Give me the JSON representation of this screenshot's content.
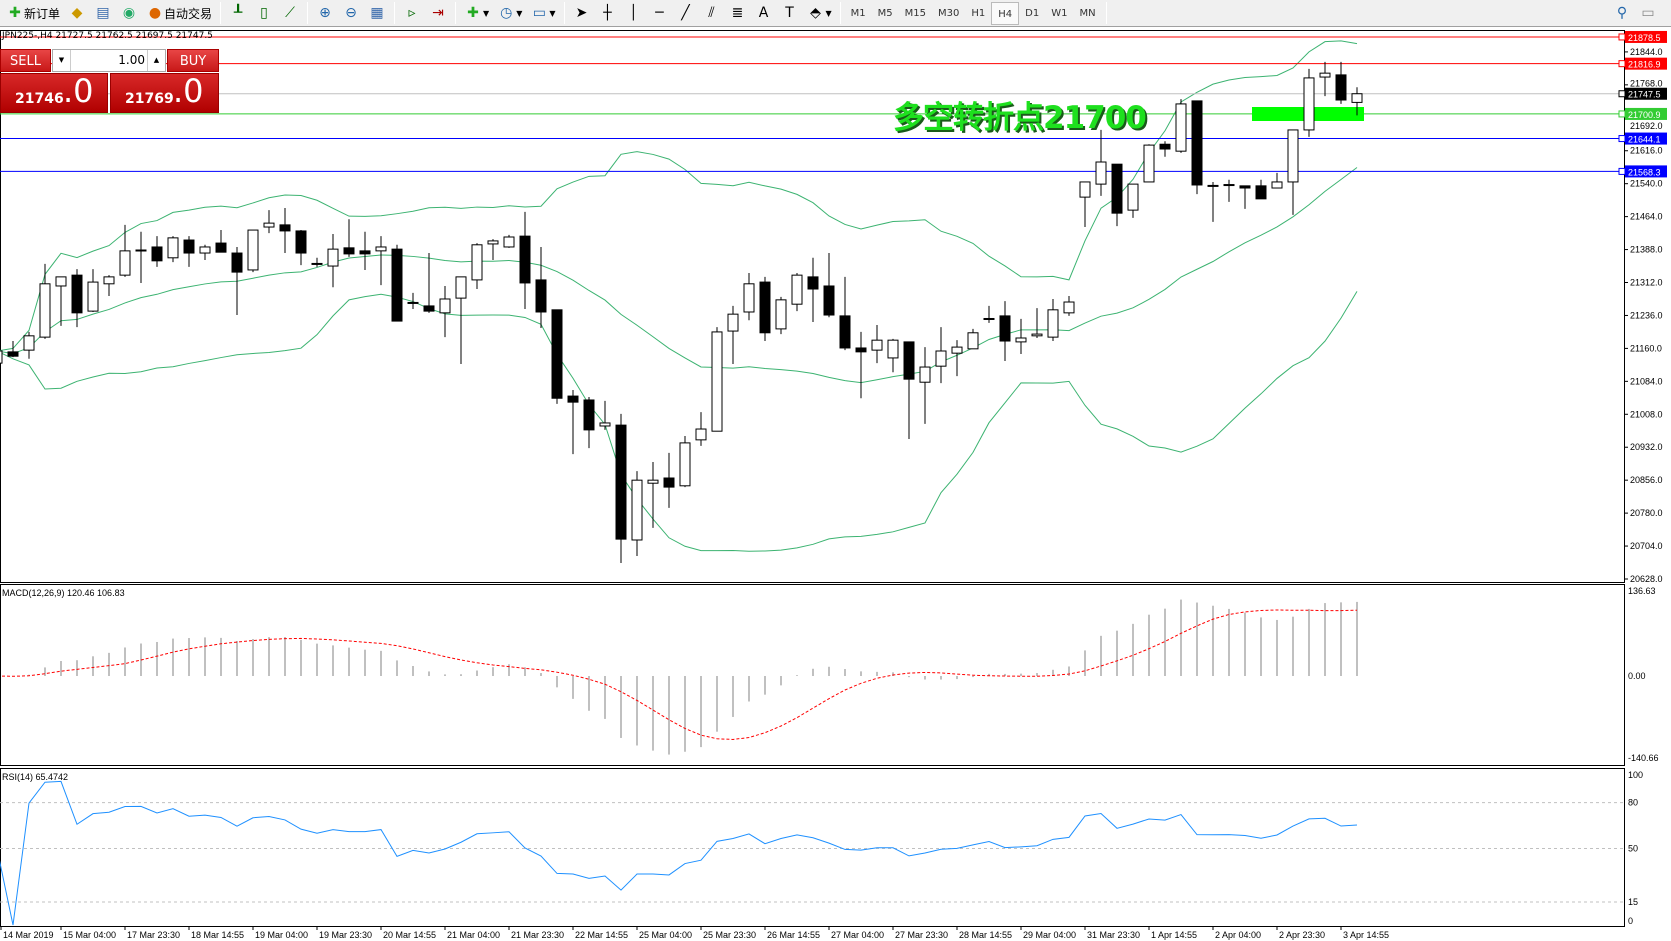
{
  "toolbar": {
    "new_order": "新订单",
    "auto_trading": "自动交易",
    "periods": [
      "M1",
      "M5",
      "M15",
      "M30",
      "H1",
      "H4",
      "D1",
      "W1",
      "MN"
    ],
    "active_period": "H4",
    "icons": [
      "new-order-icon",
      "market-watch-icon",
      "history-icon",
      "signal-icon",
      "auto-trading-icon",
      "bar-chart-icon",
      "candlestick-icon",
      "line-chart-icon",
      "zoom-in-icon",
      "zoom-out-icon",
      "tile-windows-icon",
      "chart-shift-icon",
      "autoscroll-icon",
      "indicators-icon",
      "periods-icon",
      "templates-icon",
      "cursor-icon",
      "crosshair-icon",
      "vertical-line-icon",
      "horizontal-line-icon",
      "trendline-icon",
      "fibonacci-icon",
      "channel-icon",
      "text-icon",
      "text-label-icon",
      "arrows-icon",
      "search-icon",
      "chat-icon"
    ]
  },
  "chart": {
    "symbol_info": "JPN225-,H4  21727.5 21762.5 21697.5 21747.5",
    "annotation": "多空转折点21700",
    "annotation_color": "#1ee01e",
    "trade_panel": {
      "sell_label": "SELL",
      "buy_label": "BUY",
      "lot": "1.00",
      "sell_main": "21746",
      "sell_frac": ".0",
      "buy_main": "21769",
      "buy_frac": ".0"
    },
    "price_axis": [
      "21844.0",
      "21768.0",
      "21692.0",
      "21616.0",
      "21540.0",
      "21464.0",
      "21388.0",
      "21312.0",
      "21236.0",
      "21160.0",
      "21084.0",
      "21008.0",
      "20932.0",
      "20856.0",
      "20780.0",
      "20704.0",
      "20628.0"
    ],
    "levels": [
      {
        "label": "21878.5",
        "value": 21878.5,
        "color": "#ff0000"
      },
      {
        "label": "21816.9",
        "value": 21816.9,
        "color": "#ff0000"
      },
      {
        "label": "21747.5",
        "value": 21747.5,
        "color": "#000000",
        "line": "#c0c0c0"
      },
      {
        "label": "21700.9",
        "value": 21700.9,
        "color": "#33cc33"
      },
      {
        "label": "21644.1",
        "value": 21644.1,
        "color": "#0000ff"
      },
      {
        "label": "21568.3",
        "value": 21568.3,
        "color": "#0000ff"
      }
    ],
    "zone_color": "#00ff00",
    "band_color": "#3cb371",
    "candles": [
      [
        21126,
        21160,
        21120,
        21154
      ],
      [
        21152,
        21177,
        21140,
        21142
      ],
      [
        21156,
        21198,
        21136,
        21189
      ],
      [
        21186,
        21355,
        21182,
        21309
      ],
      [
        21304,
        21325,
        21212,
        21325
      ],
      [
        21329,
        21343,
        21209,
        21242
      ],
      [
        21246,
        21343,
        21244,
        21313
      ],
      [
        21309,
        21329,
        21281,
        21325
      ],
      [
        21329,
        21445,
        21325,
        21385
      ],
      [
        21387,
        21429,
        21311,
        21387
      ],
      [
        21394,
        21419,
        21348,
        21362
      ],
      [
        21369,
        21419,
        21359,
        21415
      ],
      [
        21410,
        21419,
        21348,
        21380
      ],
      [
        21380,
        21399,
        21364,
        21394
      ],
      [
        21403,
        21433,
        21382,
        21382
      ],
      [
        21380,
        21394,
        21237,
        21336
      ],
      [
        21341,
        21433,
        21336,
        21433
      ],
      [
        21440,
        21479,
        21426,
        21449
      ],
      [
        21445,
        21484,
        21380,
        21431
      ],
      [
        21431,
        21433,
        21352,
        21380
      ],
      [
        21355,
        21369,
        21348,
        21356
      ],
      [
        21350,
        21424,
        21301,
        21389
      ],
      [
        21392,
        21458,
        21371,
        21378
      ],
      [
        21385,
        21429,
        21341,
        21378
      ],
      [
        21385,
        21419,
        21306,
        21394
      ],
      [
        21389,
        21399,
        21223,
        21223
      ],
      [
        21265,
        21288,
        21251,
        21266
      ],
      [
        21258,
        21380,
        21242,
        21246
      ],
      [
        21242,
        21304,
        21186,
        21274
      ],
      [
        21276,
        21325,
        21124,
        21325
      ],
      [
        21318,
        21403,
        21297,
        21399
      ],
      [
        21401,
        21412,
        21364,
        21408
      ],
      [
        21394,
        21422,
        21392,
        21417
      ],
      [
        21419,
        21475,
        21251,
        21311
      ],
      [
        21318,
        21394,
        21207,
        21244
      ],
      [
        21249,
        21249,
        21032,
        21045
      ],
      [
        21050,
        21064,
        20916,
        21036
      ],
      [
        21041,
        21048,
        20930,
        20972
      ],
      [
        20981,
        21039,
        20972,
        20988
      ],
      [
        20983,
        21009,
        20665,
        20720
      ],
      [
        20718,
        20877,
        20681,
        20856
      ],
      [
        20849,
        20898,
        20746,
        20856
      ],
      [
        20861,
        20919,
        20792,
        20840
      ],
      [
        20843,
        20958,
        20840,
        20942
      ],
      [
        20949,
        21013,
        20935,
        20974
      ],
      [
        20969,
        21209,
        20969,
        21198
      ],
      [
        21200,
        21258,
        21124,
        21239
      ],
      [
        21244,
        21334,
        21225,
        21309
      ],
      [
        21313,
        21325,
        21177,
        21196
      ],
      [
        21205,
        21279,
        21193,
        21272
      ],
      [
        21262,
        21334,
        21246,
        21329
      ],
      [
        21325,
        21369,
        21221,
        21297
      ],
      [
        21304,
        21380,
        21232,
        21237
      ],
      [
        21235,
        21325,
        21156,
        21161
      ],
      [
        21161,
        21198,
        21045,
        21152
      ],
      [
        21156,
        21214,
        21126,
        21179
      ],
      [
        21138,
        21182,
        21105,
        21179
      ],
      [
        21175,
        21175,
        20951,
        21089
      ],
      [
        21082,
        21163,
        20986,
        21117
      ],
      [
        21119,
        21209,
        21080,
        21154
      ],
      [
        21149,
        21179,
        21096,
        21163
      ],
      [
        21159,
        21205,
        21159,
        21196
      ],
      [
        21228,
        21258,
        21219,
        21229
      ],
      [
        21235,
        21269,
        21131,
        21177
      ],
      [
        21175,
        21228,
        21147,
        21184
      ],
      [
        21189,
        21253,
        21184,
        21193
      ],
      [
        21186,
        21274,
        21177,
        21249
      ],
      [
        21242,
        21281,
        21235,
        21267
      ],
      [
        21509,
        21544,
        21440,
        21544
      ],
      [
        21539,
        21664,
        21512,
        21590
      ],
      [
        21585,
        21585,
        21442,
        21472
      ],
      [
        21479,
        21539,
        21461,
        21539
      ],
      [
        21544,
        21631,
        21544,
        21629
      ],
      [
        21631,
        21638,
        21602,
        21620
      ],
      [
        21615,
        21735,
        21611,
        21724
      ],
      [
        21731,
        21731,
        21516,
        21537
      ],
      [
        21535,
        21544,
        21452,
        21536
      ],
      [
        21537,
        21549,
        21498,
        21538
      ],
      [
        21535,
        21535,
        21482,
        21530
      ],
      [
        21535,
        21549,
        21505,
        21505
      ],
      [
        21530,
        21565,
        21530,
        21544
      ],
      [
        21544,
        21664,
        21468,
        21664
      ],
      [
        21664,
        21805,
        21648,
        21784
      ],
      [
        21786,
        21821,
        21742,
        21795
      ],
      [
        21791,
        21821,
        21724,
        21733
      ],
      [
        21727.5,
        21762.5,
        21697.5,
        21747.5
      ]
    ]
  },
  "macd": {
    "label": "MACD(12,26,9) 120.46 106.83",
    "axis": [
      "136.63",
      "0.00",
      "-140.66"
    ],
    "max": 136.63,
    "min": -140.66,
    "hist_color": "#c0c0c0",
    "signal_color": "#ff0000"
  },
  "rsi": {
    "label": "RSI(14) 65.4742",
    "axis": [
      "100",
      "80",
      "50",
      "15",
      "0"
    ],
    "color": "#1e90ff"
  },
  "time_axis": [
    "14 Mar 2019",
    "15 Mar 04:00",
    "17 Mar 23:30",
    "18 Mar 14:55",
    "19 Mar 04:00",
    "19 Mar 23:30",
    "20 Mar 14:55",
    "21 Mar 04:00",
    "21 Mar 23:30",
    "22 Mar 14:55",
    "25 Mar 04:00",
    "25 Mar 23:30",
    "26 Mar 14:55",
    "27 Mar 04:00",
    "27 Mar 23:30",
    "28 Mar 14:55",
    "29 Mar 04:00",
    "31 Mar 23:30",
    "1 Apr 14:55",
    "2 Apr 04:00",
    "2 Apr 23:30",
    "3 Apr 14:55"
  ]
}
